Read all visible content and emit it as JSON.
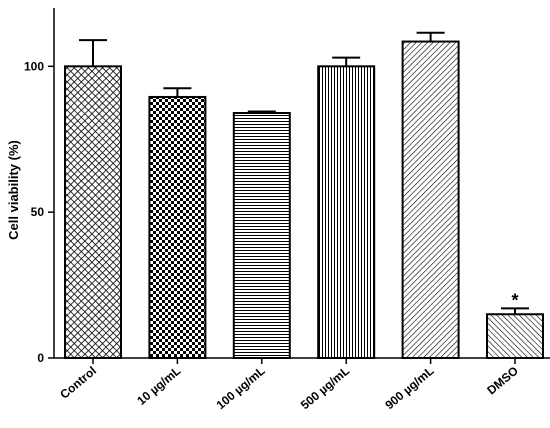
{
  "chart_data": {
    "type": "bar",
    "title": "",
    "xlabel": "",
    "ylabel": "Cell viability (%)",
    "ylim": [
      0,
      120
    ],
    "yticks": [
      0,
      50,
      100
    ],
    "categories": [
      "Control",
      "10 µg/mL",
      "100 µg/mL",
      "500 µg/mL",
      "900 µg/mL",
      "DMSO"
    ],
    "values": [
      100,
      89.5,
      84,
      100,
      108.5,
      15
    ],
    "errors": [
      9,
      3,
      0.5,
      3,
      3,
      2
    ],
    "patterns": [
      "crosshatch",
      "checker",
      "horizontal-lines",
      "vertical-lines",
      "diagonal-right",
      "diagonal-left"
    ],
    "annotations": [
      {
        "category": "DMSO",
        "text": "*"
      }
    ],
    "grid": false,
    "legend": "none"
  }
}
